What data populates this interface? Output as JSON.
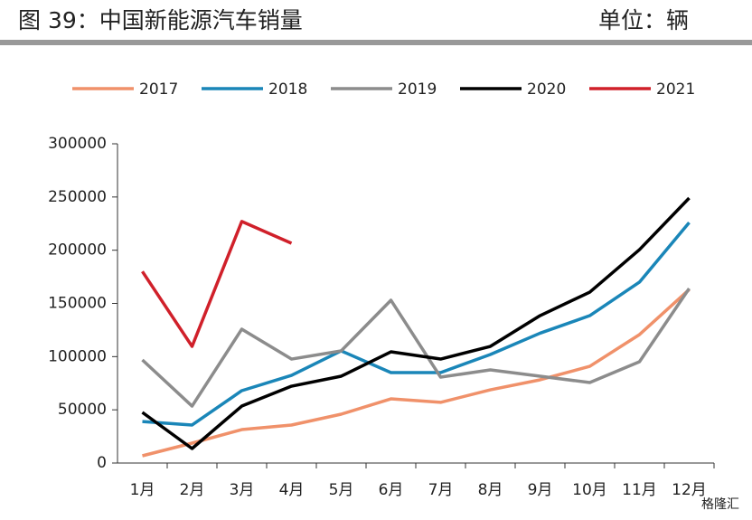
{
  "chart_data": {
    "type": "line",
    "title": "图 39：中国新能源汽车销量",
    "unit": "单位：辆",
    "watermark": "格隆汇",
    "categories": [
      "1月",
      "2月",
      "3月",
      "4月",
      "5月",
      "6月",
      "7月",
      "8月",
      "9月",
      "10月",
      "11月",
      "12月"
    ],
    "series": [
      {
        "name": "2017",
        "color": "#f0916a",
        "values": [
          6800,
          18700,
          31400,
          35700,
          45900,
          60300,
          57000,
          68800,
          78200,
          90900,
          120700,
          163000
        ]
      },
      {
        "name": "2018",
        "color": "#1a86b8",
        "values": [
          39000,
          35700,
          68000,
          82400,
          105400,
          85000,
          85000,
          102000,
          122000,
          138500,
          170000,
          226000
        ]
      },
      {
        "name": "2019",
        "color": "#8c8c8c",
        "values": [
          96900,
          53500,
          125800,
          97700,
          105400,
          153000,
          80700,
          87500,
          81600,
          75600,
          95200,
          164000
        ]
      },
      {
        "name": "2020",
        "color": "#000000",
        "values": [
          47600,
          13600,
          53500,
          72200,
          81600,
          104500,
          97700,
          109600,
          138500,
          160600,
          200500,
          249000
        ]
      },
      {
        "name": "2021",
        "color": "#d0202a",
        "values": [
          180000,
          109600,
          227000,
          206500,
          null,
          null,
          null,
          null,
          null,
          null,
          null,
          null
        ]
      }
    ],
    "ylim": [
      0,
      300000
    ],
    "yticks": [
      0,
      50000,
      100000,
      150000,
      200000,
      250000,
      300000
    ],
    "legend": "top"
  }
}
